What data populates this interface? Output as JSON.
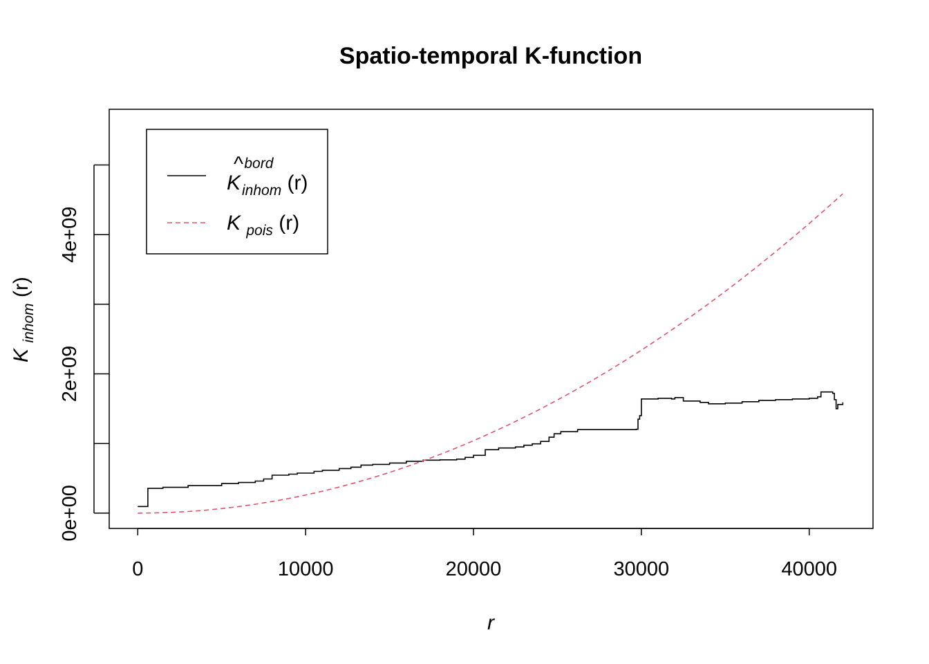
{
  "chart_data": {
    "type": "line",
    "title": "Spatio-temporal K-function",
    "xlabel": "r",
    "ylabel": {
      "main": "K",
      "sub": "inhom",
      "arg": "(r)"
    },
    "xlim": [
      -1700,
      43800
    ],
    "ylim": [
      -220000000,
      5800000000
    ],
    "x_ticks": [
      0,
      10000,
      20000,
      30000,
      40000
    ],
    "x_tick_labels": [
      "0",
      "10000",
      "20000",
      "30000",
      "40000"
    ],
    "y_ticks": [
      0,
      1000000000,
      2000000000,
      3000000000,
      4000000000,
      5000000000
    ],
    "y_tick_labels": [
      "0e+00",
      "",
      "2e+09",
      "",
      "4e+09",
      ""
    ],
    "grid": false,
    "legend_position": "top-left",
    "legend": [
      {
        "series": "kborder",
        "main": "K",
        "hat": true,
        "sup": "bord",
        "sub": "inhom",
        "arg": "(r)"
      },
      {
        "series": "kpois",
        "main": "K",
        "hat": false,
        "sup": "",
        "sub": "pois",
        "arg": "(r)"
      }
    ],
    "series": [
      {
        "id": "kborder",
        "color": "#000000",
        "dash": "solid",
        "step": true,
        "x": [
          0,
          500,
          600,
          1500,
          3000,
          5000,
          6000,
          7000,
          7500,
          8000,
          9000,
          9500,
          10500,
          11000,
          12000,
          12700,
          13300,
          14000,
          15000,
          16000,
          17000,
          18000,
          19000,
          19500,
          20000,
          20700,
          21500,
          22500,
          23000,
          23500,
          24000,
          24500,
          24800,
          25200,
          26200,
          29700,
          29800,
          29900,
          30000,
          31000,
          31800,
          32000,
          32500,
          33500,
          34000,
          35000,
          36000,
          37000,
          38000,
          39000,
          40000,
          40500,
          40700,
          41400,
          41500,
          41600,
          41700,
          42000
        ],
        "y": [
          95000000,
          95000000,
          355000000,
          370000000,
          395000000,
          425000000,
          440000000,
          460000000,
          490000000,
          545000000,
          560000000,
          575000000,
          600000000,
          615000000,
          640000000,
          660000000,
          690000000,
          700000000,
          720000000,
          745000000,
          760000000,
          765000000,
          775000000,
          800000000,
          830000000,
          910000000,
          935000000,
          950000000,
          975000000,
          995000000,
          1030000000,
          1090000000,
          1140000000,
          1170000000,
          1200000000,
          1205000000,
          1350000000,
          1400000000,
          1640000000,
          1650000000,
          1640000000,
          1660000000,
          1610000000,
          1590000000,
          1570000000,
          1580000000,
          1600000000,
          1620000000,
          1630000000,
          1640000000,
          1650000000,
          1670000000,
          1740000000,
          1720000000,
          1630000000,
          1500000000,
          1560000000,
          1590000000
        ]
      },
      {
        "id": "kpois",
        "color": "#DF536B",
        "dash": "dashed",
        "step": false,
        "x": [
          0,
          1000,
          2000,
          3000,
          4000,
          5000,
          6000,
          7000,
          8000,
          9000,
          10000,
          11000,
          12000,
          13000,
          14000,
          15000,
          16000,
          17000,
          18000,
          19000,
          20000,
          21000,
          22000,
          23000,
          24000,
          25000,
          26000,
          27000,
          28000,
          29000,
          30000,
          31000,
          32000,
          33000,
          34000,
          35000,
          36000,
          37000,
          38000,
          39000,
          40000,
          41000,
          42000
        ],
        "y": [
          0,
          2600000,
          10400000,
          23400000,
          41600000,
          65000000,
          93600000,
          127400000,
          166400000,
          210600000,
          260000000,
          314600000,
          374400000,
          439400000,
          509600000,
          585000000,
          665600000,
          751400000,
          842400000,
          938600000,
          1040000000,
          1146600000,
          1258400000,
          1375400000,
          1497600000,
          1625000000,
          1757600000,
          1895400000,
          2038400000,
          2186600000,
          2340000000,
          2498600000,
          2662400000,
          2831400000,
          3005600000,
          3185000000,
          3369600000,
          3559400000,
          3754400000,
          3954600000,
          4160000000,
          4370600000,
          4586400000
        ]
      }
    ]
  }
}
